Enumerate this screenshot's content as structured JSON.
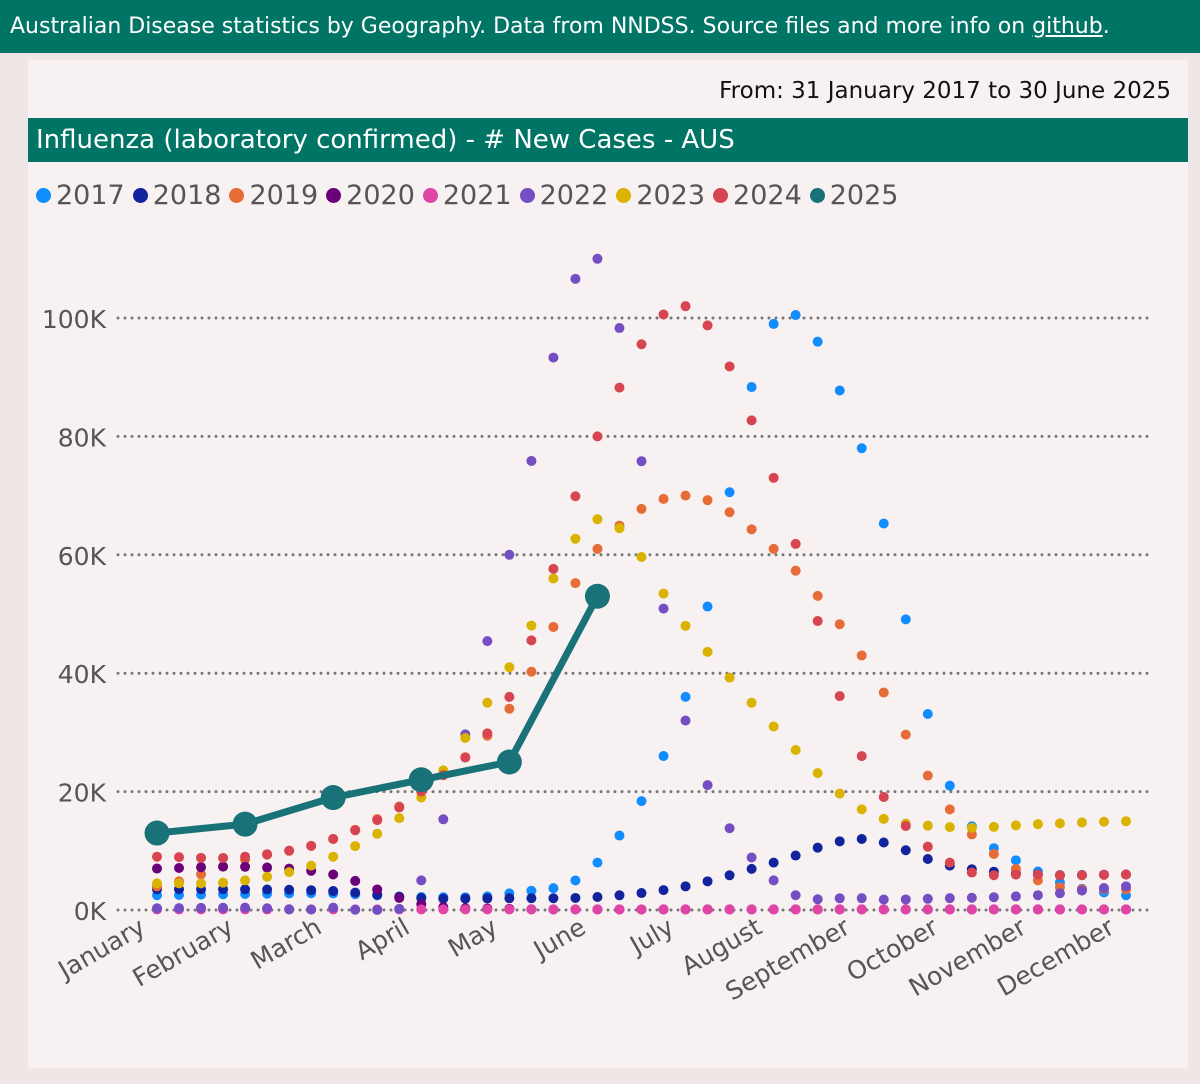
{
  "header": {
    "text_before_link": "Australian Disease statistics by Geography. Data from NNDSS. Source files and more info on ",
    "link_label": "github",
    "text_after_link": "."
  },
  "date_range": "From: 31 January 2017 to 30 June 2025",
  "colors": {
    "brand": "#007566",
    "background": "#f7f1f1"
  },
  "chart_data": {
    "type": "line",
    "title": "Influenza (laboratory confirmed) - # New Cases - AUS",
    "legend_position": "top-left",
    "grid": true,
    "ylim": [
      0,
      110000
    ],
    "yticks": [
      0,
      20000,
      40000,
      60000,
      80000,
      100000
    ],
    "ytick_labels": [
      "0K",
      "20K",
      "40K",
      "60K",
      "80K",
      "100K"
    ],
    "x_categories": [
      "January",
      "February",
      "March",
      "April",
      "May",
      "June",
      "July",
      "August",
      "September",
      "October",
      "November",
      "December"
    ],
    "series": [
      {
        "name": "2017",
        "color": "#118dff",
        "style": "dotted",
        "x": [
          1,
          2,
          3,
          4,
          5,
          6,
          7,
          8,
          9,
          10,
          11,
          12
        ],
        "values": [
          2500,
          2700,
          2800,
          2200,
          2800,
          8000,
          36000,
          99000,
          78000,
          21000,
          6500,
          2500
        ]
      },
      {
        "name": "2018",
        "color": "#12239e",
        "style": "dotted",
        "x": [
          1,
          2,
          3,
          4,
          5,
          6,
          7,
          8,
          9,
          10,
          11,
          12
        ],
        "values": [
          3500,
          3500,
          3200,
          2000,
          2000,
          2200,
          4000,
          8000,
          12000,
          7500,
          6000,
          6000
        ]
      },
      {
        "name": "2019",
        "color": "#e66c37",
        "style": "dotted",
        "x": [
          1,
          2,
          3,
          4,
          5,
          6,
          7,
          8,
          9,
          10,
          11,
          12
        ],
        "values": [
          4000,
          8500,
          12000,
          20000,
          34000,
          61000,
          70000,
          61000,
          43000,
          17000,
          5000,
          3500
        ]
      },
      {
        "name": "2020",
        "color": "#6b007b",
        "style": "dotted",
        "x": [
          1,
          2,
          3,
          4,
          5,
          6,
          7,
          8,
          9,
          10,
          11,
          12
        ],
        "values": [
          7000,
          7300,
          6000,
          1000,
          200,
          100,
          100,
          100,
          100,
          100,
          100,
          100
        ]
      },
      {
        "name": "2021",
        "color": "#e044a7",
        "style": "dotted",
        "x": [
          1,
          2,
          3,
          4,
          5,
          6,
          7,
          8,
          9,
          10,
          11,
          12
        ],
        "values": [
          100,
          100,
          100,
          100,
          100,
          100,
          100,
          100,
          100,
          100,
          100,
          100
        ]
      },
      {
        "name": "2022",
        "color": "#744ec2",
        "style": "dotted",
        "x": [
          1,
          2,
          3,
          4,
          5,
          6,
          7,
          8,
          9,
          10,
          11,
          12
        ],
        "values": [
          300,
          400,
          400,
          5000,
          60000,
          110000,
          32000,
          5000,
          2000,
          2000,
          2500,
          4000
        ]
      },
      {
        "name": "2023",
        "color": "#d9b300",
        "style": "dotted",
        "x": [
          1,
          2,
          3,
          4,
          5,
          6,
          7,
          8,
          9,
          10,
          11,
          12
        ],
        "values": [
          4500,
          5000,
          9000,
          19000,
          41000,
          66000,
          48000,
          31000,
          17000,
          14000,
          14500,
          15000
        ]
      },
      {
        "name": "2024",
        "color": "#d64550",
        "style": "dotted",
        "x": [
          1,
          2,
          3,
          4,
          5,
          6,
          7,
          8,
          9,
          10,
          11,
          12
        ],
        "values": [
          9000,
          9000,
          12000,
          20000,
          36000,
          80000,
          102000,
          73000,
          26000,
          8000,
          6000,
          6000
        ]
      },
      {
        "name": "2025",
        "color": "#197278",
        "style": "solid",
        "x": [
          1,
          2,
          3,
          4,
          5,
          6
        ],
        "values": [
          13000,
          14500,
          19000,
          22000,
          25000,
          53000
        ]
      }
    ]
  }
}
